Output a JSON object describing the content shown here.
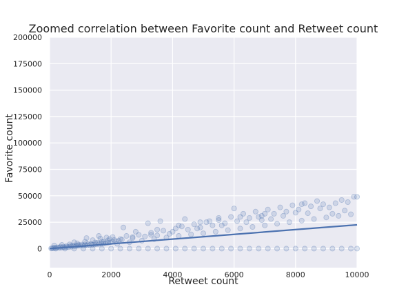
{
  "chart_data": {
    "type": "scatter",
    "title": "Zoomed correlation between Favorite count and Retweet count",
    "xlabel": "Retweet count",
    "ylabel": "Favorite count",
    "xlim": [
      0,
      10000
    ],
    "ylim": [
      -18000,
      200000
    ],
    "xticks": [
      0,
      2000,
      4000,
      6000,
      8000,
      10000
    ],
    "yticks": [
      0,
      25000,
      50000,
      75000,
      100000,
      125000,
      150000,
      175000,
      200000
    ],
    "grid": true,
    "style": "seaborn-darkgrid",
    "colors": {
      "background": "#eaeaf2",
      "grid": "#ffffff",
      "points": "#4c72b0",
      "fit_line": "#4c72b0"
    },
    "regression": {
      "slope": 2.25,
      "intercept": 0,
      "x_range": [
        0,
        10000
      ]
    },
    "series": [
      {
        "points": [
          [
            50,
            200
          ],
          [
            120,
            500
          ],
          [
            200,
            600
          ],
          [
            300,
            900
          ],
          [
            350,
            700
          ],
          [
            420,
            1100
          ],
          [
            500,
            1300
          ],
          [
            560,
            1500
          ],
          [
            620,
            1400
          ],
          [
            700,
            1800
          ],
          [
            780,
            2100
          ],
          [
            850,
            2200
          ],
          [
            930,
            2500
          ],
          [
            1000,
            2600
          ],
          [
            1080,
            2700
          ],
          [
            1150,
            3000
          ],
          [
            1230,
            3100
          ],
          [
            1300,
            3500
          ],
          [
            1380,
            3600
          ],
          [
            1450,
            3900
          ],
          [
            1520,
            4200
          ],
          [
            1600,
            4300
          ],
          [
            1680,
            4700
          ],
          [
            1750,
            5000
          ],
          [
            1820,
            5200
          ],
          [
            1900,
            5600
          ],
          [
            1980,
            6000
          ],
          [
            2050,
            6500
          ],
          [
            2150,
            7000
          ],
          [
            2250,
            7400
          ],
          [
            150,
            3000
          ],
          [
            400,
            3500
          ],
          [
            650,
            4000
          ],
          [
            900,
            5000
          ],
          [
            1150,
            6500
          ],
          [
            1400,
            8000
          ],
          [
            1650,
            9500
          ],
          [
            1850,
            10500
          ],
          [
            2050,
            11000
          ],
          [
            2300,
            9000
          ],
          [
            2500,
            12000
          ],
          [
            2700,
            10000
          ],
          [
            2900,
            13000
          ],
          [
            3100,
            11500
          ],
          [
            3300,
            15000
          ],
          [
            3500,
            12500
          ],
          [
            3700,
            17000
          ],
          [
            3900,
            14000
          ],
          [
            4100,
            19000
          ],
          [
            4300,
            21000
          ],
          [
            4500,
            18000
          ],
          [
            4700,
            23000
          ],
          [
            4900,
            20000
          ],
          [
            5100,
            25000
          ],
          [
            5300,
            22000
          ],
          [
            5500,
            27000
          ],
          [
            5700,
            24000
          ],
          [
            5900,
            30000
          ],
          [
            6100,
            26000
          ],
          [
            6300,
            33000
          ],
          [
            6500,
            29000
          ],
          [
            6700,
            35000
          ],
          [
            6900,
            31000
          ],
          [
            7100,
            37000
          ],
          [
            7300,
            33000
          ],
          [
            7500,
            39000
          ],
          [
            7700,
            35000
          ],
          [
            7900,
            41000
          ],
          [
            8100,
            37000
          ],
          [
            8300,
            43000
          ],
          [
            8500,
            40000
          ],
          [
            8700,
            45000
          ],
          [
            8900,
            42000
          ],
          [
            9100,
            39000
          ],
          [
            9300,
            43000
          ],
          [
            9500,
            46000
          ],
          [
            9700,
            44000
          ],
          [
            9900,
            49000
          ],
          [
            2200,
            4500
          ],
          [
            2600,
            6000
          ],
          [
            3000,
            7500
          ],
          [
            3400,
            9000
          ],
          [
            3800,
            10500
          ],
          [
            4200,
            12000
          ],
          [
            4600,
            13500
          ],
          [
            5000,
            14500
          ],
          [
            5400,
            16000
          ],
          [
            5800,
            17500
          ],
          [
            6200,
            19000
          ],
          [
            6600,
            20500
          ],
          [
            7000,
            22000
          ],
          [
            7400,
            23500
          ],
          [
            7800,
            25000
          ],
          [
            8200,
            26500
          ],
          [
            8600,
            28000
          ],
          [
            9000,
            29500
          ],
          [
            9400,
            31000
          ],
          [
            9800,
            32500
          ],
          [
            2400,
            20000
          ],
          [
            3200,
            24000
          ],
          [
            3600,
            26000
          ],
          [
            4400,
            28000
          ],
          [
            5200,
            26000
          ],
          [
            6000,
            38000
          ],
          [
            6800,
            30000
          ],
          [
            7200,
            28000
          ],
          [
            8000,
            34000
          ],
          [
            8800,
            38000
          ],
          [
            9600,
            36000
          ],
          [
            200,
            0
          ],
          [
            500,
            0
          ],
          [
            800,
            0
          ],
          [
            1100,
            0
          ],
          [
            1400,
            0
          ],
          [
            1700,
            0
          ],
          [
            2000,
            0
          ],
          [
            2300,
            0
          ],
          [
            2600,
            0
          ],
          [
            2900,
            0
          ],
          [
            3200,
            0
          ],
          [
            3500,
            0
          ],
          [
            3800,
            0
          ],
          [
            4100,
            0
          ],
          [
            4400,
            0
          ],
          [
            4700,
            0
          ],
          [
            5000,
            0
          ],
          [
            5300,
            0
          ],
          [
            5600,
            0
          ],
          [
            5900,
            0
          ],
          [
            6200,
            0
          ],
          [
            6500,
            0
          ],
          [
            6800,
            0
          ],
          [
            7100,
            0
          ],
          [
            7400,
            0
          ],
          [
            7700,
            0
          ],
          [
            8000,
            0
          ],
          [
            8300,
            0
          ],
          [
            8600,
            0
          ],
          [
            8900,
            0
          ],
          [
            9200,
            0
          ],
          [
            9500,
            0
          ],
          [
            9800,
            0
          ],
          [
            10000,
            0
          ],
          [
            10000,
            49000
          ],
          [
            9200,
            33000
          ],
          [
            8400,
            33500
          ],
          [
            7600,
            31000
          ],
          [
            6900,
            27000
          ],
          [
            6400,
            25000
          ],
          [
            5600,
            22000
          ],
          [
            4800,
            19000
          ],
          [
            4000,
            16000
          ],
          [
            3300,
            13000
          ],
          [
            2700,
            11000
          ],
          [
            2350,
            8500
          ],
          [
            1950,
            9000
          ],
          [
            1750,
            6500
          ],
          [
            1550,
            5500
          ],
          [
            1350,
            4500
          ],
          [
            1150,
            4000
          ],
          [
            950,
            3500
          ],
          [
            750,
            3000
          ],
          [
            550,
            2500
          ],
          [
            350,
            1800
          ],
          [
            150,
            800
          ],
          [
            80,
            300
          ],
          [
            250,
            1200
          ],
          [
            450,
            1700
          ],
          [
            680,
            2600
          ],
          [
            880,
            3200
          ],
          [
            1050,
            3800
          ],
          [
            1250,
            4400
          ],
          [
            1480,
            5800
          ],
          [
            1700,
            6800
          ],
          [
            1900,
            7800
          ],
          [
            2100,
            8200
          ],
          [
            1600,
            12000
          ],
          [
            1200,
            10000
          ],
          [
            800,
            6000
          ],
          [
            2800,
            16000
          ],
          [
            3500,
            18000
          ],
          [
            4200,
            22000
          ],
          [
            4900,
            25000
          ],
          [
            5500,
            29000
          ],
          [
            6200,
            30000
          ],
          [
            7000,
            33000
          ],
          [
            8200,
            42000
          ]
        ]
      }
    ]
  }
}
